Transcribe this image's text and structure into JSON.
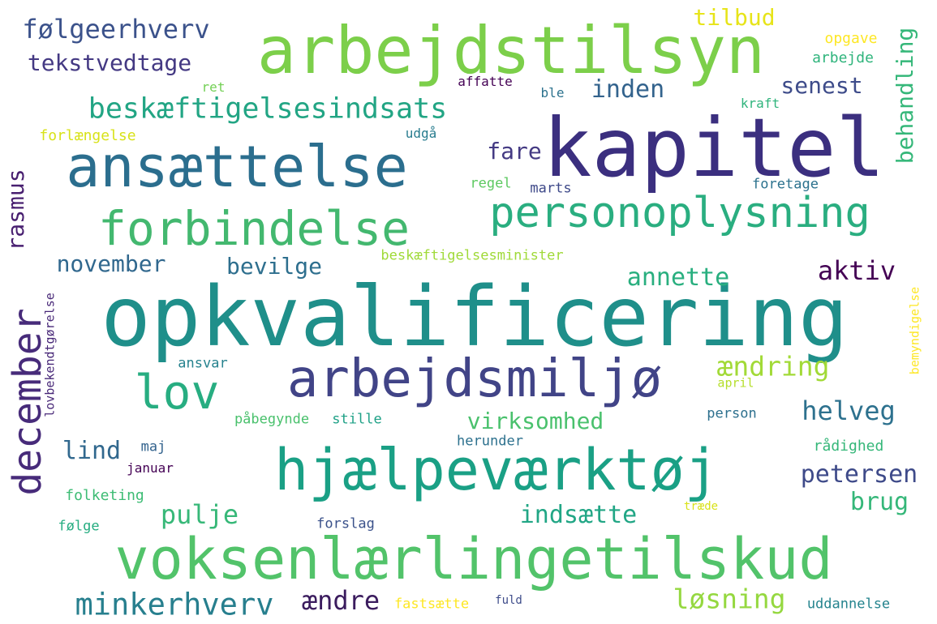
{
  "words": [
    {
      "id": "opkvalificering",
      "text": "opkvalificering",
      "color": "#1f8f8a"
    },
    {
      "id": "kapitel",
      "text": "kapitel",
      "color": "#3b2f7f"
    },
    {
      "id": "arbejdstilsyn",
      "text": "arbejdstilsyn",
      "color": "#7ccf4a"
    },
    {
      "id": "voksenlaerlingetilskud",
      "text": "voksenlærlingetilskud",
      "color": "#52c36a"
    },
    {
      "id": "hjaelpevaerktoej",
      "text": "hjælpeværktøj",
      "color": "#1aa085"
    },
    {
      "id": "ansaettelse",
      "text": "ansættelse",
      "color": "#2b6e8e"
    },
    {
      "id": "arbejdsmiljoe",
      "text": "arbejdsmiljø",
      "color": "#414487"
    },
    {
      "id": "forbindelse",
      "text": "forbindelse",
      "color": "#43b86f"
    },
    {
      "id": "personoplysning",
      "text": "personoplysning",
      "color": "#2aae80"
    },
    {
      "id": "beskaeftigelsesindsats",
      "text": "beskæftigelsesindsats",
      "color": "#22a584"
    },
    {
      "id": "lov",
      "text": "lov",
      "color": "#27ad81"
    },
    {
      "id": "december",
      "text": "december",
      "color": "#472b7a"
    },
    {
      "id": "minkerhverv",
      "text": "minkerhverv",
      "color": "#277f8e"
    },
    {
      "id": "foelgeerhverv",
      "text": "følgeerhverv",
      "color": "#3b528b"
    },
    {
      "id": "tekstvedtage",
      "text": "tekstvedtage",
      "color": "#443983"
    },
    {
      "id": "november",
      "text": "november",
      "color": "#31688e"
    },
    {
      "id": "bevilge",
      "text": "bevilge",
      "color": "#2e6f8e"
    },
    {
      "id": "rasmus",
      "text": "rasmus",
      "color": "#481f70"
    },
    {
      "id": "behandling",
      "text": "behandling",
      "color": "#35b779"
    },
    {
      "id": "inden",
      "text": "inden",
      "color": "#33638d"
    },
    {
      "id": "senest",
      "text": "senest",
      "color": "#3e4c8a"
    },
    {
      "id": "tilbud",
      "text": "tilbud",
      "color": "#e7e419"
    },
    {
      "id": "fare",
      "text": "fare",
      "color": "#443a83"
    },
    {
      "id": "annette",
      "text": "annette",
      "color": "#29af7f"
    },
    {
      "id": "aktiv",
      "text": "aktiv",
      "color": "#440154"
    },
    {
      "id": "aendring",
      "text": "ændring",
      "color": "#a2da37"
    },
    {
      "id": "helveg",
      "text": "helveg",
      "color": "#2d718e"
    },
    {
      "id": "virksomhed",
      "text": "virksomhed",
      "color": "#4ac16d"
    },
    {
      "id": "petersen",
      "text": "petersen",
      "color": "#3e4a89"
    },
    {
      "id": "brug",
      "text": "brug",
      "color": "#35b779"
    },
    {
      "id": "indsaette",
      "text": "indsætte",
      "color": "#21a685"
    },
    {
      "id": "pulje",
      "text": "pulje",
      "color": "#37b878"
    },
    {
      "id": "lind",
      "text": "lind",
      "color": "#31688e"
    },
    {
      "id": "aendre",
      "text": "ændre",
      "color": "#3b1c5e"
    },
    {
      "id": "loesning",
      "text": "løsning",
      "color": "#95d840"
    },
    {
      "id": "opgave",
      "text": "opgave",
      "color": "#fde725"
    },
    {
      "id": "arbejde",
      "text": "arbejde",
      "color": "#2fb47c"
    },
    {
      "id": "affatte",
      "text": "affatte",
      "color": "#440154"
    },
    {
      "id": "ret",
      "text": "ret",
      "color": "#73d055"
    },
    {
      "id": "ble",
      "text": "ble",
      "color": "#2c728e"
    },
    {
      "id": "kraft",
      "text": "kraft",
      "color": "#2fb47c"
    },
    {
      "id": "forlaengelse",
      "text": "forlængelse",
      "color": "#d8e219"
    },
    {
      "id": "udgaa",
      "text": "udgå",
      "color": "#287c8e"
    },
    {
      "id": "regel",
      "text": "regel",
      "color": "#5ec962"
    },
    {
      "id": "marts",
      "text": "marts",
      "color": "#3e4989"
    },
    {
      "id": "foretage",
      "text": "foretage",
      "color": "#2c728e"
    },
    {
      "id": "beskaeftigelsesminister",
      "text": "beskæftigelsesminister",
      "color": "#a0da39"
    },
    {
      "id": "ansvar",
      "text": "ansvar",
      "color": "#26828e"
    },
    {
      "id": "april",
      "text": "april",
      "color": "#b5de2b"
    },
    {
      "id": "bemyndigelse",
      "text": "bemyndigelse",
      "color": "#fde725"
    },
    {
      "id": "lovbekendtgoerelse",
      "text": "lovbekendtgørelse",
      "color": "#482878"
    },
    {
      "id": "maj",
      "text": "maj",
      "color": "#33638d"
    },
    {
      "id": "paabegynde",
      "text": "påbegynde",
      "color": "#4ac16d"
    },
    {
      "id": "stille",
      "text": "stille",
      "color": "#1fa187"
    },
    {
      "id": "person",
      "text": "person",
      "color": "#2d708e"
    },
    {
      "id": "herunder",
      "text": "herunder",
      "color": "#2d718e"
    },
    {
      "id": "raadighed",
      "text": "rådighed",
      "color": "#35b779"
    },
    {
      "id": "januar",
      "text": "januar",
      "color": "#440154"
    },
    {
      "id": "folketing",
      "text": "folketing",
      "color": "#3dbc74"
    },
    {
      "id": "traede",
      "text": "træde",
      "color": "#d8e219"
    },
    {
      "id": "foelge",
      "text": "følge",
      "color": "#26ad81"
    },
    {
      "id": "forslag",
      "text": "forslag",
      "color": "#3b528b"
    },
    {
      "id": "fastsaette",
      "text": "fastsætte",
      "color": "#fde725"
    },
    {
      "id": "fuld",
      "text": "fuld",
      "color": "#3e4c8a"
    },
    {
      "id": "uddannelse",
      "text": "uddannelse",
      "color": "#25848e"
    }
  ]
}
